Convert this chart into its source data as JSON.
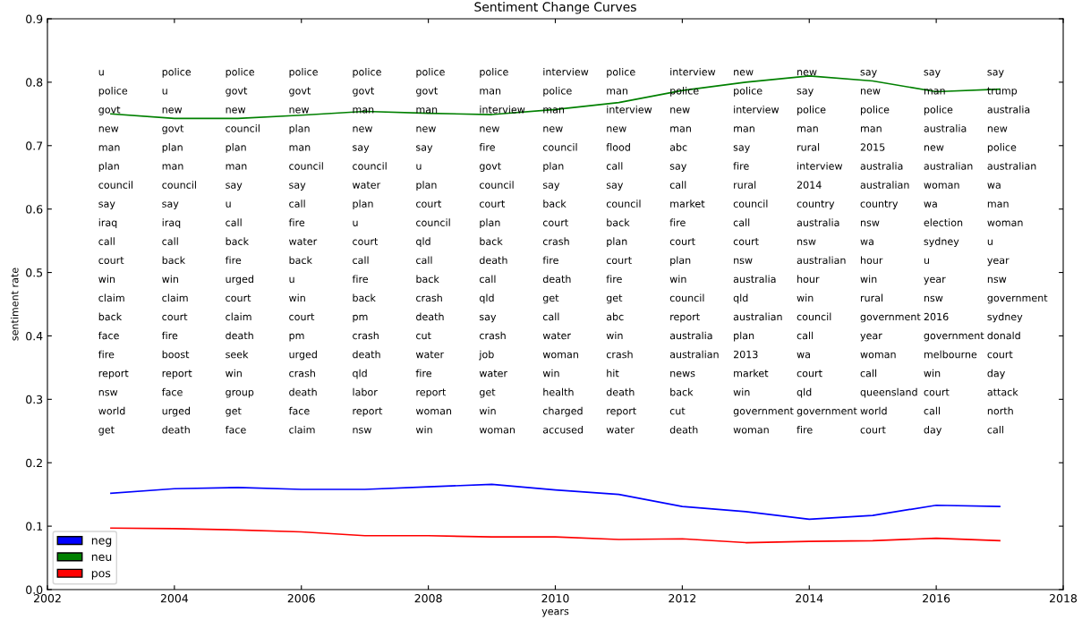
{
  "chart_data": {
    "type": "line",
    "title": "Sentiment Change Curves",
    "xlabel": "years",
    "ylabel": "sentiment rate",
    "x": [
      2003,
      2004,
      2005,
      2006,
      2007,
      2008,
      2009,
      2010,
      2011,
      2012,
      2013,
      2014,
      2015,
      2016,
      2017
    ],
    "series": [
      {
        "name": "neg",
        "color": "#0000ff",
        "values": [
          0.152,
          0.159,
          0.161,
          0.158,
          0.158,
          0.162,
          0.166,
          0.157,
          0.15,
          0.131,
          0.123,
          0.111,
          0.117,
          0.133,
          0.131
        ]
      },
      {
        "name": "neu",
        "color": "#008000",
        "values": [
          0.75,
          0.743,
          0.743,
          0.748,
          0.754,
          0.751,
          0.749,
          0.757,
          0.768,
          0.787,
          0.8,
          0.81,
          0.802,
          0.785,
          0.789
        ]
      },
      {
        "name": "pos",
        "color": "#ff0000",
        "values": [
          0.097,
          0.096,
          0.094,
          0.091,
          0.085,
          0.085,
          0.083,
          0.083,
          0.079,
          0.08,
          0.074,
          0.076,
          0.077,
          0.081,
          0.077
        ]
      }
    ],
    "xlim": [
      2002,
      2018
    ],
    "xticks": [
      2002,
      2004,
      2006,
      2008,
      2010,
      2012,
      2014,
      2016,
      2018
    ],
    "ylim": [
      0.0,
      0.9
    ],
    "yticks": [
      {
        "value": 0.0,
        "label": "0.0"
      },
      0.1,
      0.2,
      0.3,
      0.4,
      0.5,
      0.6,
      0.7,
      0.8,
      0.9
    ],
    "grid": false,
    "legend": "bottom left",
    "marker": "none",
    "line_style": "solid",
    "annotations": [
      "u",
      "police",
      "govt",
      "new",
      "man",
      "plan",
      "council",
      "say",
      "iraq",
      "call",
      "court",
      "win",
      "claim",
      "back",
      "face",
      "fire",
      "report",
      "nsw",
      "world",
      "get",
      "police",
      "u",
      "new",
      "govt",
      "plan",
      "man",
      "council",
      "say",
      "iraq",
      "call",
      "back",
      "win",
      "claim",
      "court",
      "fire",
      "boost",
      "report",
      "face",
      "urged",
      "death",
      "police",
      "govt",
      "new",
      "council",
      "plan",
      "man",
      "say",
      "u",
      "call",
      "back",
      "fire",
      "urged",
      "court",
      "claim",
      "death",
      "seek",
      "win",
      "group",
      "get",
      "face",
      "police",
      "govt",
      "new",
      "plan",
      "man",
      "council",
      "say",
      "call",
      "fire",
      "water",
      "back",
      "u",
      "win",
      "court",
      "pm",
      "urged",
      "crash",
      "death",
      "face",
      "claim",
      "police",
      "govt",
      "man",
      "new",
      "say",
      "council",
      "water",
      "plan",
      "u",
      "court",
      "call",
      "fire",
      "back",
      "pm",
      "crash",
      "death",
      "qld",
      "labor",
      "report",
      "nsw",
      "police",
      "govt",
      "man",
      "new",
      "say",
      "u",
      "plan",
      "court",
      "council",
      "qld",
      "call",
      "back",
      "crash",
      "death",
      "cut",
      "water",
      "fire",
      "report",
      "woman",
      "win",
      "police",
      "man",
      "interview",
      "new",
      "fire",
      "govt",
      "council",
      "court",
      "plan",
      "back",
      "death",
      "call",
      "qld",
      "say",
      "crash",
      "job",
      "water",
      "get",
      "win",
      "woman",
      "interview",
      "police",
      "man",
      "new",
      "council",
      "plan",
      "say",
      "back",
      "court",
      "crash",
      "fire",
      "death",
      "get",
      "call",
      "water",
      "woman",
      "win",
      "health",
      "charged",
      "accused",
      "police",
      "man",
      "interview",
      "new",
      "flood",
      "call",
      "say",
      "council",
      "back",
      "plan",
      "court",
      "fire",
      "get",
      "abc",
      "win",
      "crash",
      "hit",
      "death",
      "report",
      "water",
      "interview",
      "police",
      "new",
      "man",
      "abc",
      "say",
      "call",
      "market",
      "fire",
      "court",
      "plan",
      "win",
      "council",
      "report",
      "australia",
      "australian",
      "news",
      "back",
      "cut",
      "death",
      "new",
      "police",
      "interview",
      "man",
      "say",
      "fire",
      "rural",
      "council",
      "call",
      "court",
      "nsw",
      "australia",
      "qld",
      "australian",
      "plan",
      "2013",
      "market",
      "win",
      "government",
      "woman",
      "new",
      "say",
      "police",
      "man",
      "rural",
      "interview",
      "2014",
      "country",
      "australia",
      "nsw",
      "australian",
      "hour",
      "win",
      "council",
      "call",
      "wa",
      "court",
      "qld",
      "government",
      "fire",
      "say",
      "new",
      "police",
      "man",
      "2015",
      "australia",
      "australian",
      "country",
      "nsw",
      "wa",
      "hour",
      "win",
      "rural",
      "government",
      "year",
      "woman",
      "call",
      "queensland",
      "world",
      "court",
      "say",
      "man",
      "police",
      "australia",
      "new",
      "australian",
      "woman",
      "wa",
      "election",
      "sydney",
      "u",
      "year",
      "nsw",
      "2016",
      "government",
      "melbourne",
      "win",
      "court",
      "call",
      "day",
      "say",
      "trump",
      "australia",
      "new",
      "police",
      "australian",
      "wa",
      "man",
      "woman",
      "u",
      "year",
      "nsw",
      "government",
      "sydney",
      "donald",
      "court",
      "day",
      "attack",
      "north",
      "call"
    ]
  }
}
